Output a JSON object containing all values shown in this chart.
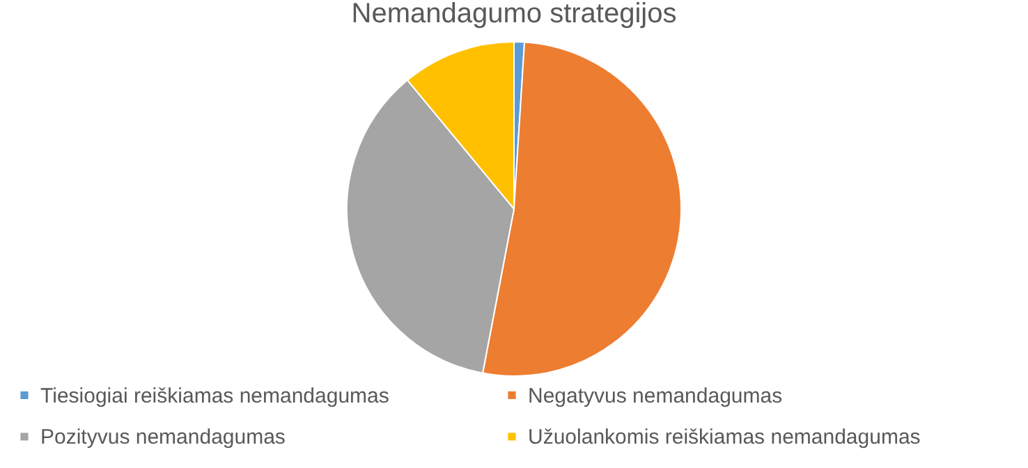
{
  "chart_data": {
    "type": "pie",
    "title": "Nemandagumo strategijos",
    "categories": [
      "Tiesiogiai reiškiamas nemandagumas",
      "Negatyvus nemandagumas",
      "Pozityvus nemandagumas",
      "Užuolankomis reiškiamas nemandagumas"
    ],
    "values": [
      1,
      52,
      36,
      11
    ],
    "colors": [
      "#5b9bd5",
      "#ed7d31",
      "#a5a5a5",
      "#ffc000"
    ],
    "legend": "bottom"
  }
}
